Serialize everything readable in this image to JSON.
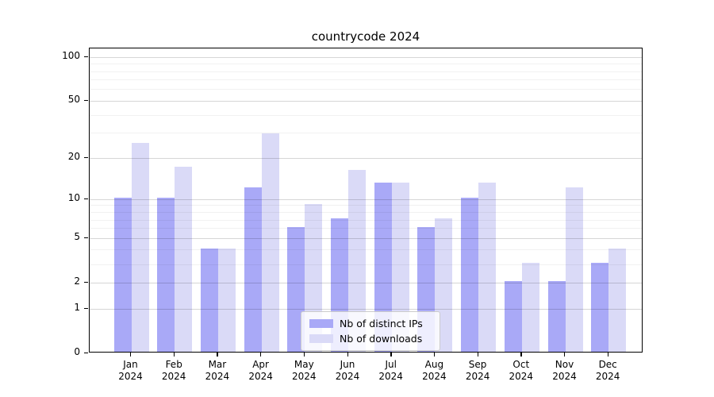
{
  "title": "countrycode 2024",
  "chart_data": {
    "type": "bar",
    "title": "countrycode 2024",
    "categories": [
      "Jan",
      "Feb",
      "Mar",
      "Apr",
      "May",
      "Jun",
      "Jul",
      "Aug",
      "Sep",
      "Oct",
      "Nov",
      "Dec"
    ],
    "x_year_label": "2024",
    "series": [
      {
        "name": "Nb of distinct IPs",
        "color": "#a9a9f7",
        "values": [
          10,
          10,
          4,
          12,
          6,
          7,
          13,
          6,
          10,
          2,
          2,
          3
        ]
      },
      {
        "name": "Nb of downloads",
        "color": "#dadaf7",
        "values": [
          25,
          17,
          4,
          29,
          9,
          16,
          13,
          7,
          13,
          3,
          12,
          4
        ]
      }
    ],
    "yscale": "log1p",
    "ylim": [
      0,
      115
    ],
    "y_major_ticks": [
      0,
      1,
      2,
      5,
      10,
      20,
      50,
      100
    ],
    "y_minor_ticks": [
      3,
      4,
      6,
      7,
      8,
      9,
      30,
      40,
      60,
      70,
      80,
      90
    ],
    "grid": true,
    "legend_position": "lower center",
    "axes_color": "#000000",
    "background_color": "#ffffff"
  }
}
